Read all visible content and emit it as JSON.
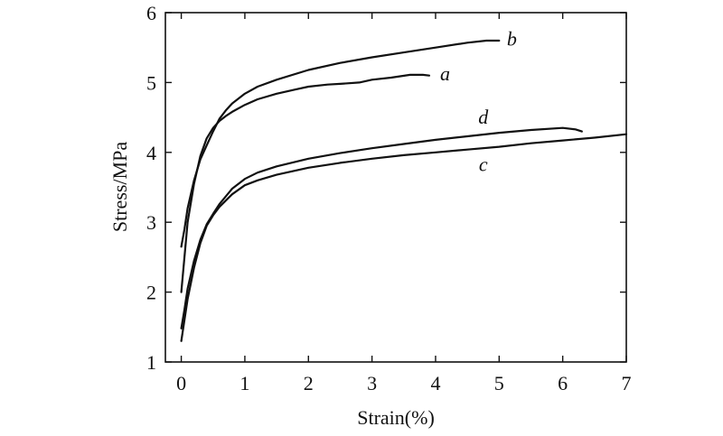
{
  "chart_data": {
    "type": "line",
    "xlabel": "Strain(%)",
    "ylabel": "Stress/MPa",
    "xlim": [
      -0.25,
      7
    ],
    "ylim": [
      1,
      6
    ],
    "x_ticks": [
      0,
      1,
      2,
      3,
      4,
      5,
      6,
      7
    ],
    "y_ticks": [
      1,
      2,
      3,
      4,
      5,
      6
    ],
    "grid": false,
    "series": [
      {
        "name": "a",
        "x": [
          0.0,
          0.05,
          0.1,
          0.2,
          0.3,
          0.4,
          0.5,
          0.6,
          0.7,
          0.8,
          1.0,
          1.2,
          1.5,
          1.8,
          2.0,
          2.3,
          2.5,
          2.8,
          3.0,
          3.3,
          3.6,
          3.8,
          3.9
        ],
        "y": [
          2.0,
          2.5,
          3.0,
          3.55,
          3.95,
          4.2,
          4.35,
          4.45,
          4.52,
          4.58,
          4.68,
          4.76,
          4.84,
          4.9,
          4.94,
          4.97,
          4.98,
          5.0,
          5.04,
          5.07,
          5.11,
          5.11,
          5.1
        ]
      },
      {
        "name": "b",
        "x": [
          0.0,
          0.05,
          0.1,
          0.2,
          0.3,
          0.4,
          0.5,
          0.6,
          0.7,
          0.8,
          1.0,
          1.2,
          1.5,
          2.0,
          2.5,
          3.0,
          3.5,
          4.0,
          4.5,
          4.8,
          5.0
        ],
        "y": [
          2.65,
          2.9,
          3.2,
          3.6,
          3.9,
          4.1,
          4.3,
          4.48,
          4.6,
          4.7,
          4.84,
          4.94,
          5.04,
          5.18,
          5.28,
          5.36,
          5.43,
          5.5,
          5.57,
          5.6,
          5.6
        ]
      },
      {
        "name": "c",
        "x": [
          0.0,
          0.05,
          0.1,
          0.2,
          0.3,
          0.4,
          0.5,
          0.6,
          0.8,
          1.0,
          1.2,
          1.5,
          2.0,
          2.5,
          3.0,
          3.5,
          4.0,
          4.5,
          5.0,
          5.5,
          6.0,
          6.5,
          7.0
        ],
        "y": [
          1.3,
          1.6,
          1.9,
          2.35,
          2.7,
          2.95,
          3.1,
          3.22,
          3.4,
          3.53,
          3.6,
          3.68,
          3.78,
          3.85,
          3.91,
          3.96,
          4.0,
          4.04,
          4.08,
          4.13,
          4.17,
          4.21,
          4.26
        ]
      },
      {
        "name": "d",
        "x": [
          0.0,
          0.05,
          0.1,
          0.2,
          0.3,
          0.4,
          0.5,
          0.6,
          0.8,
          1.0,
          1.2,
          1.5,
          2.0,
          2.5,
          3.0,
          3.5,
          4.0,
          4.5,
          5.0,
          5.5,
          6.0,
          6.2,
          6.3
        ],
        "y": [
          1.48,
          1.75,
          2.05,
          2.45,
          2.75,
          2.97,
          3.12,
          3.26,
          3.48,
          3.62,
          3.71,
          3.8,
          3.91,
          3.99,
          4.06,
          4.12,
          4.18,
          4.23,
          4.28,
          4.32,
          4.35,
          4.33,
          4.3
        ]
      }
    ],
    "labels": [
      {
        "text": "a",
        "x": 4.15,
        "y": 5.12
      },
      {
        "text": "b",
        "x": 5.2,
        "y": 5.62
      },
      {
        "text": "d",
        "x": 4.75,
        "y": 4.5
      },
      {
        "text": "c",
        "x": 4.75,
        "y": 3.82
      }
    ]
  }
}
